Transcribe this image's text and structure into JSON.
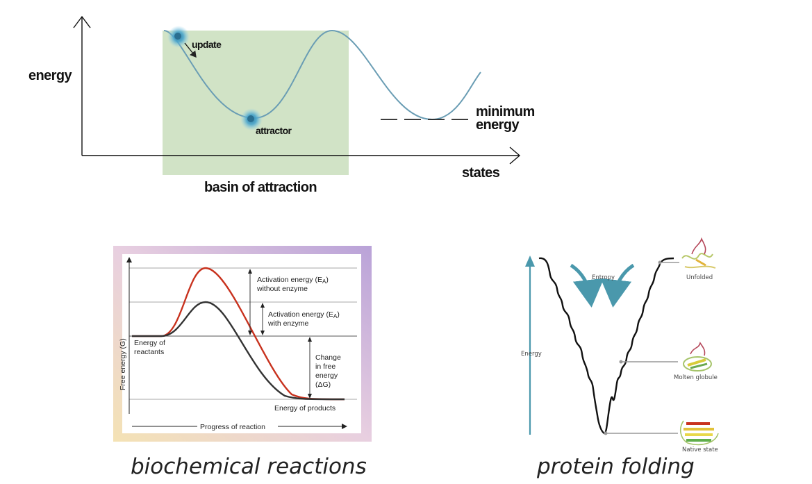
{
  "landscape": {
    "y_axis_label": "energy",
    "x_axis_label": "states",
    "update_label": "update",
    "attractor_label": "attractor",
    "minimum_label_line1": "minimum",
    "minimum_label_line2": "energy",
    "basin_label": "basin of attraction"
  },
  "reaction": {
    "activation_without_line1": "Activation energy (E",
    "activation_without_sub": "A",
    "activation_without_close": ")",
    "activation_without_line2": "without enzyme",
    "activation_with_line1": "Activation energy (E",
    "activation_with_sub": "A",
    "activation_with_close": ")",
    "activation_with_line2": "with enzyme",
    "reactants_line1": "Energy of",
    "reactants_line2": "reactants",
    "change_line1": "Change",
    "change_line2": "in free",
    "change_line3": "energy",
    "change_line4": "(ΔG)",
    "products": "Energy of products",
    "y_axis": "Free energy (G)",
    "x_axis": "Progress of reaction",
    "colors": {
      "without_enzyme": "#c8321e",
      "with_enzyme": "#333333"
    }
  },
  "folding": {
    "energy": "Energy",
    "entropy": "Entropy",
    "unfolded": "Unfolded",
    "molten": "Molten globule",
    "native": "Native state",
    "colors": {
      "arrow": "#4a98ac"
    }
  },
  "captions": {
    "left": "biochemical reactions",
    "right": "protein folding"
  }
}
